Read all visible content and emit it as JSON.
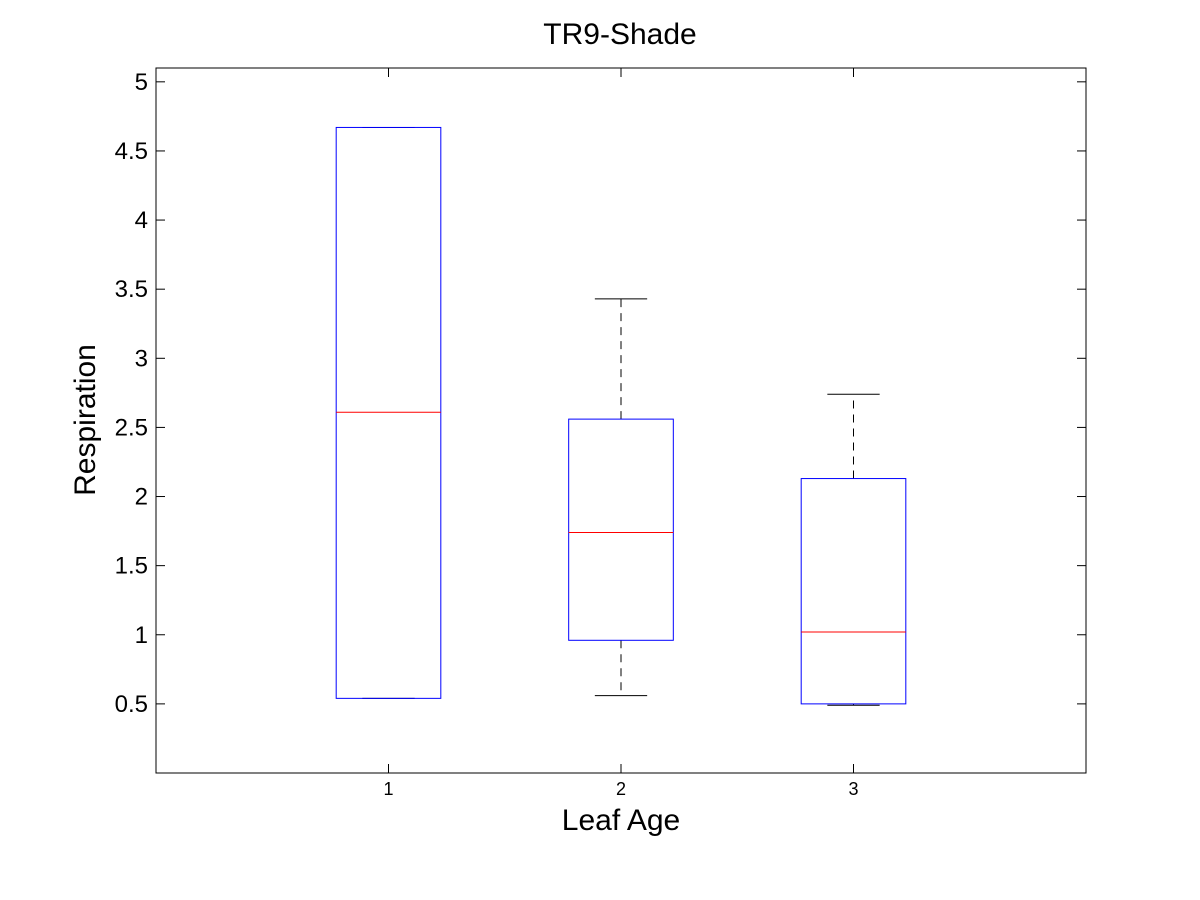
{
  "chart_data": {
    "type": "box",
    "title": "TR9-Shade",
    "xlabel": "Leaf Age",
    "ylabel": "Respiration",
    "categories": [
      "1",
      "2",
      "3"
    ],
    "ylim": [
      0,
      5.1
    ],
    "xlim": [
      0,
      4
    ],
    "yticks": [
      "0.5",
      "1",
      "1.5",
      "2",
      "2.5",
      "3",
      "3.5",
      "4",
      "4.5",
      "5"
    ],
    "boxes": [
      {
        "category": "1",
        "whisker_low": 0.54,
        "q1": 0.54,
        "median": 2.61,
        "q3": 4.67,
        "whisker_high": 4.67
      },
      {
        "category": "2",
        "whisker_low": 0.56,
        "q1": 0.96,
        "median": 1.74,
        "q3": 2.56,
        "whisker_high": 3.43
      },
      {
        "category": "3",
        "whisker_low": 0.49,
        "q1": 0.5,
        "median": 1.02,
        "q3": 2.13,
        "whisker_high": 2.74
      }
    ],
    "grid": false,
    "colors": {
      "box": "#0000ff",
      "median": "#ff0000",
      "whisker": "#000000",
      "axes": "#000000"
    }
  }
}
